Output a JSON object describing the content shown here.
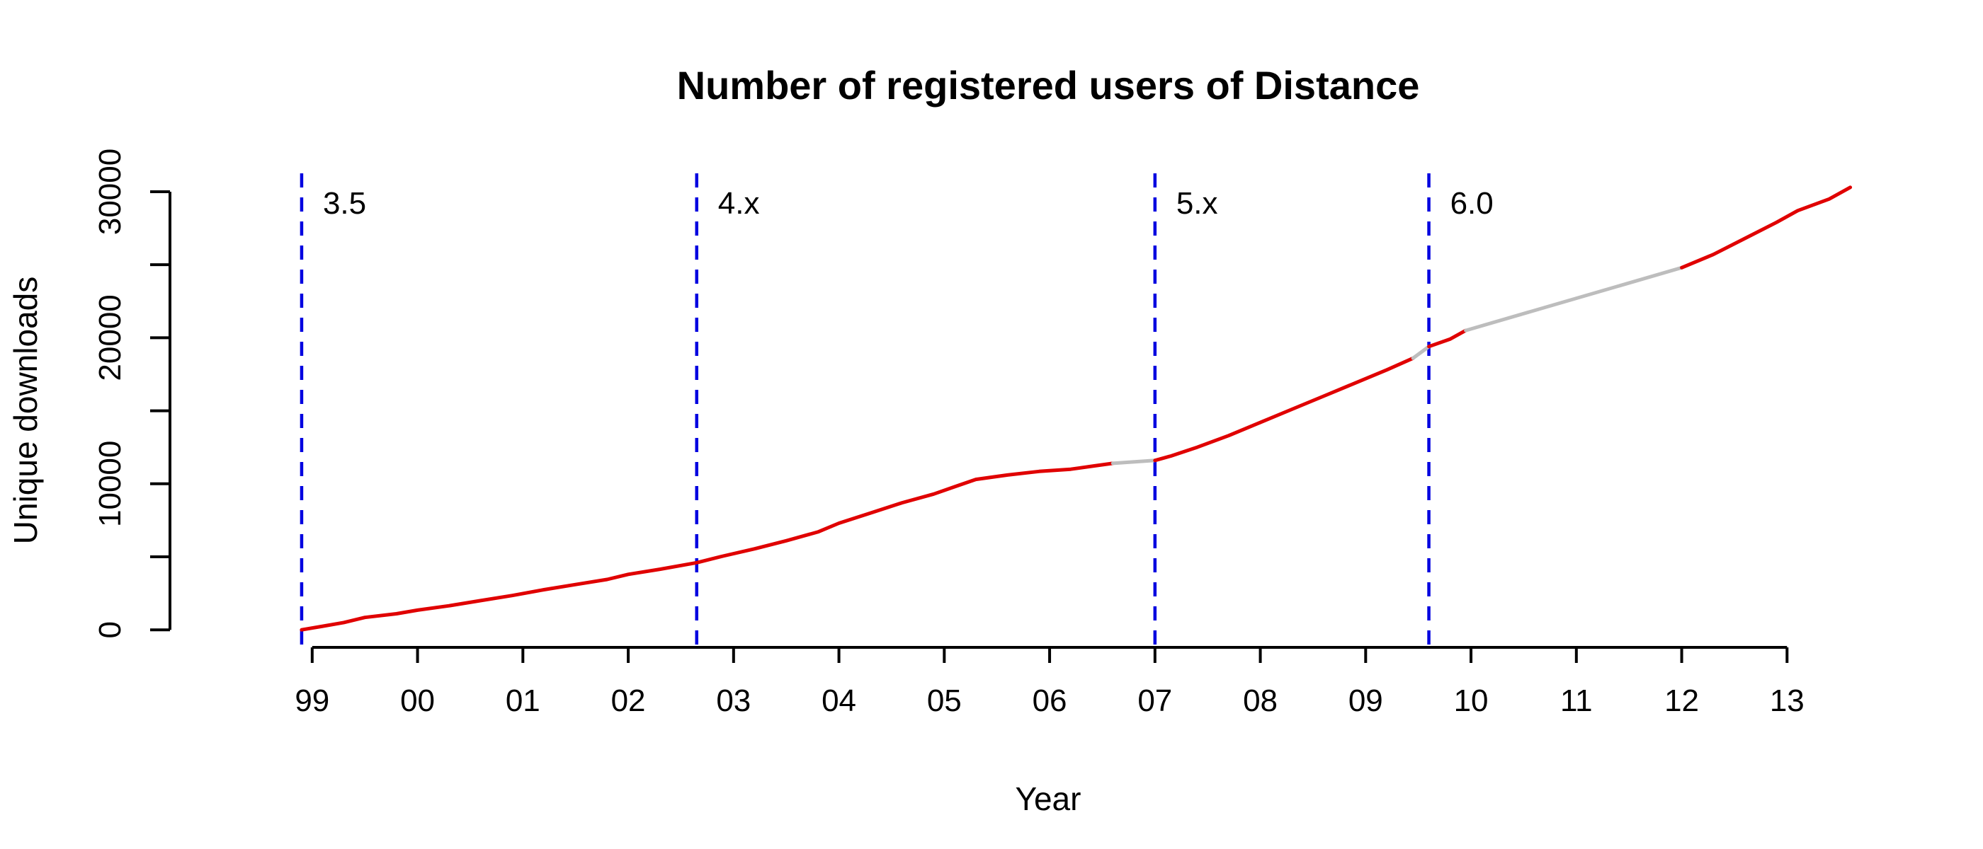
{
  "chart_data": {
    "type": "line",
    "title": "Number of registered users of Distance",
    "xlabel": "Year",
    "ylabel": "Unique downloads",
    "x_ticks": [
      {
        "value": 1999,
        "label": "99"
      },
      {
        "value": 2000,
        "label": "00"
      },
      {
        "value": 2001,
        "label": "01"
      },
      {
        "value": 2002,
        "label": "02"
      },
      {
        "value": 2003,
        "label": "03"
      },
      {
        "value": 2004,
        "label": "04"
      },
      {
        "value": 2005,
        "label": "05"
      },
      {
        "value": 2006,
        "label": "06"
      },
      {
        "value": 2007,
        "label": "07"
      },
      {
        "value": 2008,
        "label": "08"
      },
      {
        "value": 2009,
        "label": "09"
      },
      {
        "value": 2010,
        "label": "10"
      },
      {
        "value": 2011,
        "label": "11"
      },
      {
        "value": 2012,
        "label": "12"
      },
      {
        "value": 2013,
        "label": "13"
      }
    ],
    "y_ticks": [
      {
        "value": 0,
        "label": "0"
      },
      {
        "value": 5000,
        "label": ""
      },
      {
        "value": 10000,
        "label": "10000"
      },
      {
        "value": 15000,
        "label": ""
      },
      {
        "value": 20000,
        "label": "20000"
      },
      {
        "value": 25000,
        "label": ""
      },
      {
        "value": 30000,
        "label": "30000"
      }
    ],
    "xlim": [
      1997.65,
      2013.65
    ],
    "ylim": [
      -1200,
      31500
    ],
    "grid": false,
    "colors": {
      "observed": "#e00000",
      "interpolated": "#bdbdbd",
      "release": "#0000e0"
    },
    "releases": [
      {
        "x": 1998.9,
        "label": "3.5"
      },
      {
        "x": 2002.65,
        "label": "4.x"
      },
      {
        "x": 2007.0,
        "label": "5.x"
      },
      {
        "x": 2009.6,
        "label": "6.0"
      }
    ],
    "segments": [
      {
        "style": "observed",
        "points": [
          [
            1998.9,
            0
          ],
          [
            1999.1,
            250
          ],
          [
            1999.3,
            500
          ],
          [
            1999.5,
            850
          ],
          [
            1999.8,
            1100
          ],
          [
            2000.0,
            1350
          ],
          [
            2000.3,
            1650
          ],
          [
            2000.6,
            2000
          ],
          [
            2000.9,
            2350
          ],
          [
            2001.2,
            2750
          ],
          [
            2001.5,
            3100
          ],
          [
            2001.8,
            3450
          ],
          [
            2002.0,
            3800
          ],
          [
            2002.3,
            4150
          ],
          [
            2002.65,
            4600
          ],
          [
            2002.9,
            5050
          ],
          [
            2003.2,
            5550
          ],
          [
            2003.5,
            6100
          ],
          [
            2003.8,
            6700
          ],
          [
            2004.0,
            7300
          ],
          [
            2004.3,
            8000
          ],
          [
            2004.6,
            8700
          ],
          [
            2004.9,
            9300
          ],
          [
            2005.1,
            9800
          ],
          [
            2005.3,
            10300
          ],
          [
            2005.6,
            10600
          ],
          [
            2005.9,
            10850
          ],
          [
            2006.2,
            11000
          ],
          [
            2006.4,
            11200
          ],
          [
            2006.6,
            11400
          ]
        ]
      },
      {
        "style": "interpolated",
        "points": [
          [
            2006.6,
            11400
          ],
          [
            2007.0,
            11600
          ]
        ]
      },
      {
        "style": "observed",
        "points": [
          [
            2007.0,
            11600
          ],
          [
            2007.15,
            11900
          ],
          [
            2007.4,
            12500
          ],
          [
            2007.7,
            13300
          ],
          [
            2008.0,
            14200
          ],
          [
            2008.3,
            15100
          ],
          [
            2008.6,
            16000
          ],
          [
            2008.9,
            16900
          ],
          [
            2009.2,
            17800
          ],
          [
            2009.45,
            18600
          ]
        ]
      },
      {
        "style": "interpolated",
        "points": [
          [
            2009.45,
            18600
          ],
          [
            2009.6,
            19400
          ]
        ]
      },
      {
        "style": "observed",
        "points": [
          [
            2009.6,
            19400
          ],
          [
            2009.8,
            19900
          ],
          [
            2009.95,
            20500
          ]
        ]
      },
      {
        "style": "interpolated",
        "points": [
          [
            2009.95,
            20500
          ],
          [
            2012.0,
            24800
          ]
        ]
      },
      {
        "style": "observed",
        "points": [
          [
            2012.0,
            24800
          ],
          [
            2012.3,
            25700
          ],
          [
            2012.6,
            26800
          ],
          [
            2012.9,
            27900
          ],
          [
            2013.1,
            28700
          ],
          [
            2013.4,
            29500
          ],
          [
            2013.6,
            30300
          ]
        ]
      }
    ]
  }
}
